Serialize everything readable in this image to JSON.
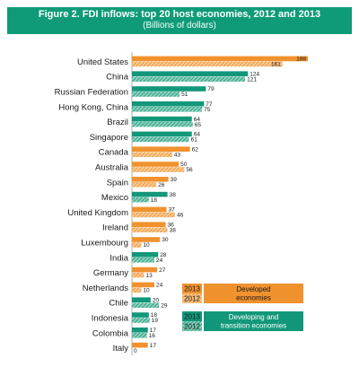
{
  "chart_data": {
    "type": "bar",
    "title": "Figure 2. FDI inflows: top 20 host economies, 2012 and 2013",
    "subtitle": "(Billions of dollars)",
    "categories": [
      "United States",
      "China",
      "Russian Federation",
      "Hong Kong, China",
      "Brazil",
      "Singapore",
      "Canada",
      "Australia",
      "Spain",
      "Mexico",
      "United Kingdom",
      "Ireland",
      "Luxembourg",
      "India",
      "Germany",
      "Netherlands",
      "Chile",
      "Indonesia",
      "Colombia",
      "Italy"
    ],
    "series": [
      {
        "name": "2013",
        "values": [
          188,
          124,
          79,
          77,
          64,
          64,
          62,
          50,
          39,
          38,
          37,
          36,
          30,
          28,
          27,
          24,
          20,
          18,
          17,
          17
        ]
      },
      {
        "name": "2012",
        "values": [
          161,
          121,
          51,
          75,
          65,
          61,
          43,
          56,
          26,
          18,
          46,
          38,
          10,
          24,
          13,
          10,
          29,
          19,
          16,
          0
        ]
      }
    ],
    "economy_group": [
      "developed",
      "developing",
      "developing",
      "developing",
      "developing",
      "developing",
      "developed",
      "developed",
      "developed",
      "developing",
      "developed",
      "developed",
      "developed",
      "developing",
      "developed",
      "developed",
      "developing",
      "developing",
      "developing",
      "developed"
    ],
    "xlim": [
      0,
      188
    ],
    "colors": {
      "developed": "#f0922e",
      "developing": "#12977a",
      "title_bg": "#0f9b78"
    },
    "legend": {
      "placement": "bottom-right",
      "groups": [
        {
          "label": "Developed economies",
          "year_labels": [
            "2013",
            "2012"
          ],
          "color": "#f0922e"
        },
        {
          "label": "Developing and transition economies",
          "year_labels": [
            "2013",
            "2012"
          ],
          "color": "#12977a"
        }
      ]
    }
  }
}
